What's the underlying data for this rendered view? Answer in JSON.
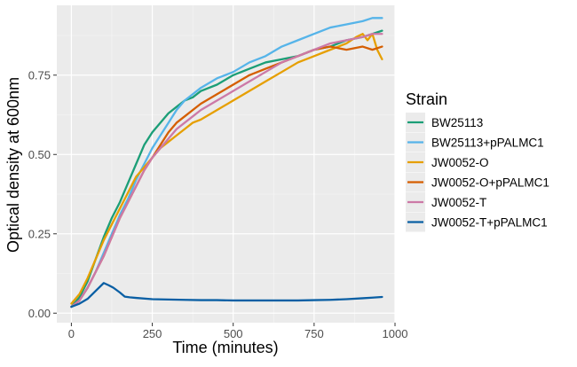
{
  "chart_data": {
    "type": "line",
    "xlabel": "Time (minutes)",
    "ylabel": "Optical density at 600nm",
    "xlim": [
      -45,
      1000
    ],
    "ylim": [
      -0.03,
      0.97
    ],
    "x_ticks": [
      0,
      250,
      500,
      750,
      1000
    ],
    "x_tick_labels": [
      "0",
      "250",
      "500",
      "750",
      "1000"
    ],
    "y_ticks": [
      0,
      0.25,
      0.5,
      0.75
    ],
    "y_tick_labels": [
      "0.00",
      "0.25",
      "0.50",
      "0.75"
    ],
    "grid": true,
    "legend_title": "Strain",
    "legend_position": "right",
    "series": [
      {
        "name": "BW25113",
        "color": "#1b9e77",
        "x": [
          0,
          25,
          50,
          75,
          100,
          125,
          150,
          175,
          200,
          225,
          250,
          275,
          300,
          325,
          350,
          375,
          400,
          450,
          500,
          550,
          600,
          650,
          700,
          750,
          800,
          850,
          900,
          930,
          960
        ],
        "y": [
          0.02,
          0.05,
          0.1,
          0.17,
          0.24,
          0.3,
          0.35,
          0.41,
          0.47,
          0.53,
          0.57,
          0.6,
          0.63,
          0.65,
          0.67,
          0.68,
          0.7,
          0.72,
          0.75,
          0.77,
          0.79,
          0.8,
          0.81,
          0.83,
          0.84,
          0.86,
          0.87,
          0.88,
          0.89
        ]
      },
      {
        "name": "BW25113+pPALMC1",
        "color": "#56b4e9",
        "x": [
          0,
          25,
          50,
          75,
          100,
          125,
          150,
          175,
          200,
          225,
          250,
          275,
          300,
          325,
          350,
          375,
          400,
          450,
          500,
          550,
          600,
          650,
          700,
          750,
          800,
          850,
          900,
          930,
          960
        ],
        "y": [
          0.02,
          0.04,
          0.08,
          0.13,
          0.19,
          0.25,
          0.31,
          0.36,
          0.42,
          0.47,
          0.52,
          0.56,
          0.6,
          0.64,
          0.67,
          0.69,
          0.71,
          0.74,
          0.76,
          0.79,
          0.81,
          0.84,
          0.86,
          0.88,
          0.9,
          0.91,
          0.92,
          0.93,
          0.93
        ]
      },
      {
        "name": "JW0052-O",
        "color": "#e69f00",
        "x": [
          0,
          25,
          50,
          75,
          100,
          125,
          150,
          175,
          200,
          225,
          250,
          275,
          300,
          325,
          350,
          375,
          400,
          450,
          500,
          550,
          600,
          650,
          700,
          750,
          800,
          850,
          880,
          900,
          915,
          930,
          945,
          960
        ],
        "y": [
          0.03,
          0.06,
          0.11,
          0.17,
          0.23,
          0.28,
          0.33,
          0.38,
          0.43,
          0.46,
          0.49,
          0.52,
          0.54,
          0.56,
          0.58,
          0.6,
          0.61,
          0.64,
          0.67,
          0.7,
          0.73,
          0.76,
          0.79,
          0.81,
          0.83,
          0.85,
          0.87,
          0.88,
          0.86,
          0.88,
          0.83,
          0.8
        ]
      },
      {
        "name": "JW0052-O+pPALMC1",
        "color": "#d55e00",
        "x": [
          0,
          25,
          50,
          75,
          100,
          125,
          150,
          175,
          200,
          225,
          250,
          275,
          300,
          325,
          350,
          375,
          400,
          450,
          500,
          550,
          600,
          650,
          700,
          750,
          800,
          850,
          900,
          930,
          960
        ],
        "y": [
          0.02,
          0.04,
          0.08,
          0.13,
          0.18,
          0.24,
          0.3,
          0.35,
          0.4,
          0.45,
          0.49,
          0.53,
          0.57,
          0.6,
          0.62,
          0.64,
          0.66,
          0.69,
          0.72,
          0.75,
          0.77,
          0.79,
          0.81,
          0.83,
          0.84,
          0.83,
          0.84,
          0.83,
          0.84
        ]
      },
      {
        "name": "JW0052-T",
        "color": "#cc79a7",
        "x": [
          0,
          25,
          50,
          75,
          100,
          125,
          150,
          175,
          200,
          225,
          250,
          275,
          300,
          325,
          350,
          375,
          400,
          450,
          500,
          550,
          600,
          650,
          700,
          750,
          800,
          850,
          900,
          930,
          960
        ],
        "y": [
          0.02,
          0.04,
          0.08,
          0.13,
          0.18,
          0.24,
          0.3,
          0.35,
          0.4,
          0.45,
          0.49,
          0.52,
          0.55,
          0.58,
          0.6,
          0.62,
          0.64,
          0.67,
          0.7,
          0.73,
          0.76,
          0.79,
          0.81,
          0.83,
          0.85,
          0.86,
          0.87,
          0.88,
          0.88
        ]
      },
      {
        "name": "JW0052-T+pPALMC1",
        "color": "#0a5fa4",
        "x": [
          0,
          25,
          50,
          75,
          100,
          115,
          130,
          150,
          165,
          180,
          200,
          250,
          300,
          350,
          400,
          450,
          500,
          550,
          600,
          650,
          700,
          750,
          800,
          850,
          900,
          930,
          960
        ],
        "y": [
          0.02,
          0.03,
          0.045,
          0.07,
          0.095,
          0.088,
          0.08,
          0.065,
          0.052,
          0.05,
          0.048,
          0.044,
          0.043,
          0.042,
          0.041,
          0.041,
          0.04,
          0.04,
          0.04,
          0.04,
          0.04,
          0.041,
          0.042,
          0.044,
          0.047,
          0.049,
          0.051
        ]
      }
    ]
  }
}
